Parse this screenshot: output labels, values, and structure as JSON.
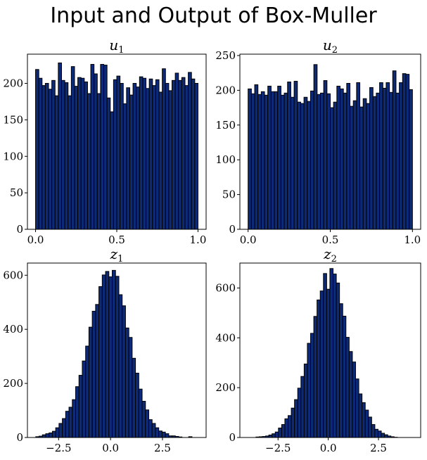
{
  "figure": {
    "title": "Input and Output of Box-Muller"
  },
  "chart_data": [
    {
      "type": "bar",
      "title": "u",
      "title_sub": "1",
      "xlim": [
        -0.05,
        1.05
      ],
      "ylim": [
        0,
        240
      ],
      "xticks": [
        0.0,
        0.5,
        1.0
      ],
      "xtick_labels": [
        "0.0",
        "0.5",
        "1.0"
      ],
      "yticks": [
        0,
        50,
        100,
        150,
        200
      ],
      "ytick_labels": [
        "0",
        "50",
        "100",
        "150",
        "200"
      ],
      "bin_start": 0.0,
      "bin_width": 0.02,
      "values": [
        219,
        207,
        197,
        200,
        192,
        204,
        183,
        228,
        204,
        201,
        183,
        223,
        196,
        208,
        207,
        202,
        186,
        226,
        213,
        186,
        226,
        225,
        180,
        161,
        205,
        210,
        200,
        172,
        194,
        184,
        200,
        195,
        209,
        207,
        193,
        206,
        197,
        205,
        188,
        220,
        200,
        190,
        204,
        214,
        204,
        208,
        197,
        215,
        206,
        200
      ],
      "bar_color": "#0c2a77",
      "edge_color": "#000000",
      "grid": false
    },
    {
      "type": "bar",
      "title": "u",
      "title_sub": "2",
      "xlim": [
        -0.05,
        1.05
      ],
      "ylim": [
        0,
        252
      ],
      "xticks": [
        0.0,
        0.5,
        1.0
      ],
      "xtick_labels": [
        "0.0",
        "0.5",
        "1.0"
      ],
      "yticks": [
        0,
        50,
        100,
        150,
        200,
        250
      ],
      "ytick_labels": [
        "0",
        "50",
        "100",
        "150",
        "200",
        "250"
      ],
      "bin_start": 0.0,
      "bin_width": 0.02,
      "values": [
        202,
        195,
        208,
        194,
        198,
        193,
        206,
        198,
        198,
        206,
        193,
        196,
        212,
        190,
        213,
        183,
        181,
        190,
        184,
        199,
        237,
        194,
        196,
        214,
        195,
        175,
        183,
        206,
        202,
        196,
        210,
        177,
        185,
        211,
        176,
        188,
        181,
        204,
        191,
        196,
        211,
        203,
        211,
        197,
        228,
        196,
        211,
        224,
        223,
        201
      ],
      "bar_color": "#0c2a77",
      "edge_color": "#000000",
      "grid": false
    },
    {
      "type": "bar",
      "title": "z",
      "title_sub": "1",
      "xlim": [
        -4.0,
        4.6
      ],
      "ylim": [
        0,
        645
      ],
      "xticks": [
        -2.5,
        0.0,
        2.5
      ],
      "xtick_labels": [
        "−2.5",
        "0.0",
        "2.5"
      ],
      "yticks": [
        0,
        200,
        400,
        600
      ],
      "ytick_labels": [
        "0",
        "200",
        "400",
        "600"
      ],
      "bin_start": -3.6,
      "bin_width": 0.16,
      "values": [
        3,
        5,
        10,
        14,
        17,
        23,
        36,
        52,
        70,
        97,
        112,
        140,
        188,
        230,
        283,
        338,
        408,
        467,
        492,
        558,
        601,
        614,
        594,
        618,
        596,
        528,
        487,
        405,
        370,
        293,
        238,
        179,
        134,
        102,
        66,
        52,
        36,
        24,
        20,
        14,
        6,
        6,
        4,
        2,
        0,
        0,
        3
      ],
      "bar_color": "#0c2a77",
      "edge_color": "#000000",
      "grid": false
    },
    {
      "type": "bar",
      "title": "z",
      "title_sub": "2",
      "xlim": [
        -4.4,
        4.6
      ],
      "ylim": [
        0,
        700
      ],
      "xticks": [
        -2.5,
        0.0,
        2.5
      ],
      "xtick_labels": [
        "−2.5",
        "0.0",
        "2.5"
      ],
      "yticks": [
        0,
        200,
        400,
        600
      ],
      "ytick_labels": [
        "0",
        "200",
        "400",
        "600"
      ],
      "bin_start": -3.6,
      "bin_width": 0.16,
      "values": [
        2,
        3,
        4,
        6,
        10,
        15,
        22,
        38,
        52,
        75,
        88,
        118,
        152,
        198,
        245,
        295,
        378,
        418,
        486,
        552,
        588,
        658,
        595,
        678,
        656,
        620,
        537,
        487,
        402,
        345,
        303,
        235,
        175,
        140,
        110,
        82,
        52,
        33,
        26,
        17,
        11,
        6,
        3,
        1
      ],
      "bar_color": "#0c2a77",
      "edge_color": "#000000",
      "grid": false
    }
  ]
}
